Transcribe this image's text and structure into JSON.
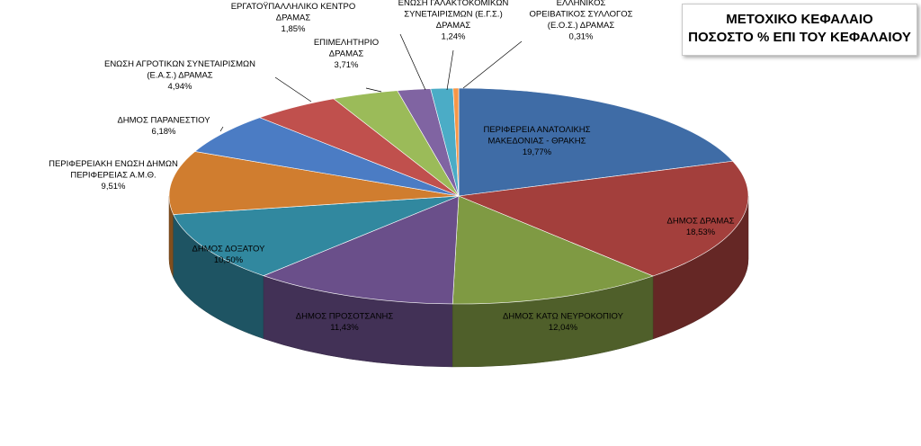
{
  "chart_data": {
    "type": "pie",
    "title": [
      "ΜΕΤΟΧΙΚΟ ΚΕΦΑΛΑΙΟ",
      "ΠΟΣΟΣΤΟ % ΕΠΙ ΤΟΥ ΚΕΦΑΛΑΙΟΥ"
    ],
    "slices": [
      {
        "label": [
          "ΠΕΡΙΦΕΡΕΙΑ ΑΝΑΤΟΛΙΚΗΣ",
          "ΜΑΚΕΔΟΝΙΑΣ - ΘΡΑΚΗΣ"
        ],
        "value_text": "19,77%",
        "value": 19.77,
        "color": "#3f6ca6"
      },
      {
        "label": [
          "ΔΗΜΟΣ ΔΡΑΜΑΣ"
        ],
        "value_text": "18,53%",
        "value": 18.53,
        "color": "#a33f3c"
      },
      {
        "label": [
          "ΔΗΜΟΣ ΚΑΤΩ ΝΕΥΡΟΚΟΠΙΟΥ"
        ],
        "value_text": "12,04%",
        "value": 12.04,
        "color": "#7f9a43"
      },
      {
        "label": [
          "ΔΗΜΟΣ ΠΡΟΣΟΤΣΑΝΗΣ"
        ],
        "value_text": "11,43%",
        "value": 11.43,
        "color": "#6a4f8a"
      },
      {
        "label": [
          "ΔΗΜΟΣ ΔΟΞΑΤΟΥ"
        ],
        "value_text": "10,50%",
        "value": 10.5,
        "color": "#31889f"
      },
      {
        "label": [
          "ΠΕΡΙΦΕΡΕΙΑΚΗ ΕΝΩΣΗ ΔΗΜΩΝ",
          "ΠΕΡΙΦΕΡΕΙΑΣ Α.Μ.Θ."
        ],
        "value_text": "9,51%",
        "value": 9.51,
        "color": "#d07d2f"
      },
      {
        "label": [
          "ΔΗΜΟΣ ΠΑΡΑΝΕΣΤΙΟΥ"
        ],
        "value_text": "6,18%",
        "value": 6.18,
        "color": "#4b7cc4"
      },
      {
        "label": [
          "ΕΝΩΣΗ ΑΓΡΟΤΙΚΩΝ ΣΥΝΕΤΑΙΡΙΣΜΩΝ",
          "(Ε.Α.Σ.) ΔΡΑΜΑΣ"
        ],
        "value_text": "4,94%",
        "value": 4.94,
        "color": "#c0504d"
      },
      {
        "label": [
          "ΕΠΙΜΕΛΗΤΗΡΙΟ",
          "ΔΡΑΜΑΣ"
        ],
        "value_text": "3,71%",
        "value": 3.71,
        "color": "#9bbb59"
      },
      {
        "label": [
          "ΕΡΓΑΤΟΫΠΑΛΛΗΛΙΚΟ ΚΕΝΤΡΟ",
          "ΔΡΑΜΑΣ"
        ],
        "value_text": "1,85%",
        "value": 1.85,
        "color": "#8064a2"
      },
      {
        "label": [
          "ΕΝΩΣΗ ΓΑΛΑΚΤΟΚΟΜΙΚΩΝ",
          "ΣΥΝΕΤΑΙΡΙΣΜΩΝ (Ε.Γ.Σ.)",
          "ΔΡΑΜΑΣ"
        ],
        "value_text": "1,24%",
        "value": 1.24,
        "color": "#4bacc6"
      },
      {
        "label": [
          "ΕΛΛΗΝΙΚΟΣ",
          "ΟΡΕΙΒΑΤΙΚΟΣ ΣΥΛΛΟΓΟΣ",
          "(Ε.Ο.Σ.) ΔΡΑΜΑΣ"
        ],
        "value_text": "0,31%",
        "value": 0.31,
        "color": "#f79646"
      }
    ],
    "legend": "none",
    "style": "3d-pie"
  }
}
